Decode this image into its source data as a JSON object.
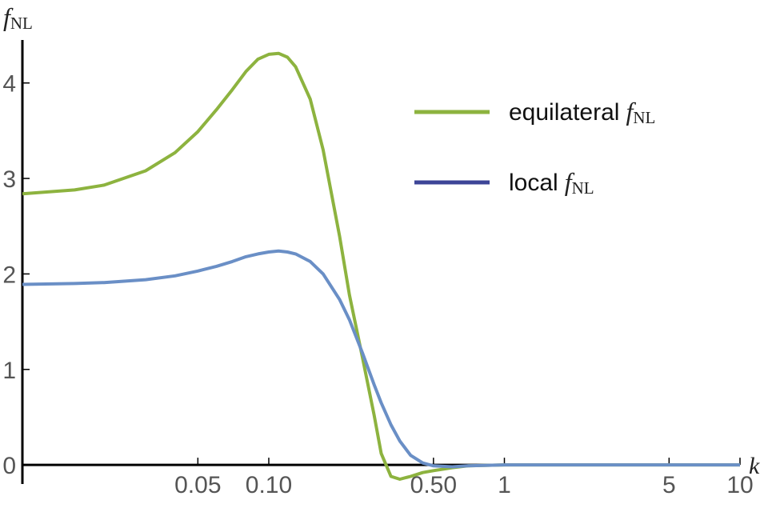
{
  "chart_data": {
    "type": "line",
    "ylabel": {
      "main": "f",
      "sub": "NL"
    },
    "xlabel": "k",
    "x": [
      0.009,
      0.015,
      0.02,
      0.03,
      0.04,
      0.05,
      0.06,
      0.07,
      0.08,
      0.09,
      0.1,
      0.11,
      0.12,
      0.13,
      0.15,
      0.17,
      0.2,
      0.22,
      0.25,
      0.28,
      0.3,
      0.33,
      0.36,
      0.4,
      0.45,
      0.5,
      0.6,
      0.7,
      1,
      2,
      5,
      10
    ],
    "series": [
      {
        "name": "equilateral",
        "color": "#8db33f",
        "legend_color": "#8db33f",
        "values": [
          2.84,
          2.88,
          2.93,
          3.08,
          3.27,
          3.49,
          3.72,
          3.93,
          4.12,
          4.25,
          4.3,
          4.31,
          4.27,
          4.17,
          3.83,
          3.3,
          2.39,
          1.78,
          1.12,
          0.52,
          0.12,
          -0.12,
          -0.15,
          -0.12,
          -0.08,
          -0.06,
          -0.03,
          -0.01,
          0,
          0,
          0,
          0
        ]
      },
      {
        "name": "local",
        "color": "#6a8fc6",
        "legend_color": "#3d4597",
        "values": [
          1.89,
          1.9,
          1.91,
          1.94,
          1.98,
          2.03,
          2.08,
          2.13,
          2.18,
          2.21,
          2.23,
          2.24,
          2.23,
          2.21,
          2.13,
          2.0,
          1.73,
          1.52,
          1.17,
          0.84,
          0.65,
          0.42,
          0.25,
          0.1,
          0.02,
          -0.01,
          -0.02,
          -0.01,
          0,
          0,
          0,
          0
        ]
      }
    ],
    "xscale": "log",
    "xlim": [
      0.009,
      10
    ],
    "ylim": [
      -0.2,
      4.45
    ],
    "xticks": [
      0.05,
      {
        "value": 0.1,
        "label": "0.10"
      },
      {
        "value": 0.5,
        "label": "0.50"
      },
      1,
      5,
      10
    ],
    "yticks": [
      0,
      1,
      2,
      3,
      4
    ],
    "legend": "upper right"
  }
}
